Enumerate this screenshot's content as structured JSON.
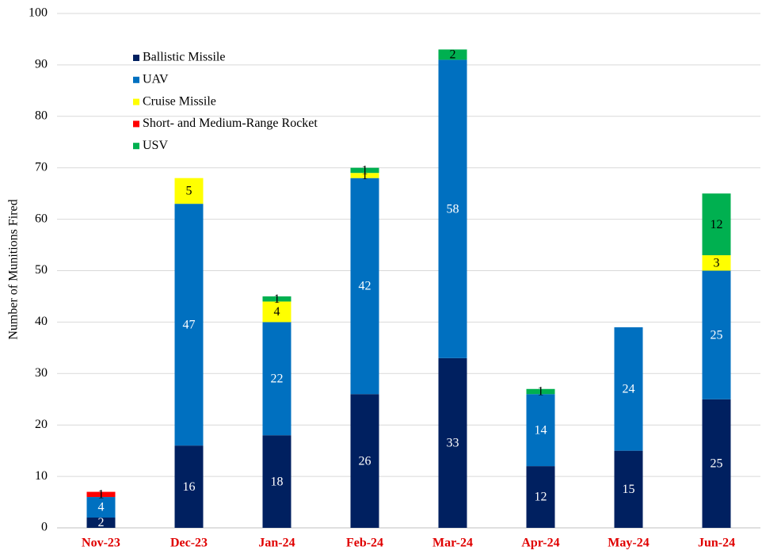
{
  "chart_data": {
    "type": "stacked_bar",
    "y_label": "Number of Munitions Fired",
    "categories": [
      "Nov-23",
      "Dec-23",
      "Jan-24",
      "Feb-24",
      "Mar-24",
      "Apr-24",
      "May-24",
      "Jun-24"
    ],
    "series": [
      {
        "name": "Ballistic Missile",
        "color": "#002060",
        "label_color": "#ffffff",
        "values": [
          2,
          16,
          18,
          26,
          33,
          12,
          15,
          25
        ]
      },
      {
        "name": "UAV",
        "color": "#0070c0",
        "label_color": "#ffffff",
        "values": [
          4,
          47,
          22,
          42,
          58,
          14,
          24,
          25
        ]
      },
      {
        "name": "Cruise Missile",
        "color": "#ffff00",
        "label_color": "#000000",
        "values": [
          null,
          5,
          4,
          1,
          null,
          null,
          null,
          3
        ]
      },
      {
        "name": "Short- and Medium-Range Rocket",
        "color": "#ff0000",
        "label_color": "#000000",
        "values": [
          1,
          null,
          null,
          null,
          null,
          null,
          null,
          null
        ]
      },
      {
        "name": "USV",
        "color": "#00b050",
        "label_color": "#000000",
        "values": [
          null,
          null,
          1,
          1,
          2,
          1,
          null,
          12
        ]
      }
    ],
    "ylim": [
      0,
      100
    ],
    "yticks": [
      0,
      10,
      20,
      30,
      40,
      50,
      60,
      70,
      80,
      90,
      100
    ],
    "grid": true,
    "category_color": "#e00000",
    "legend": "upper left"
  }
}
